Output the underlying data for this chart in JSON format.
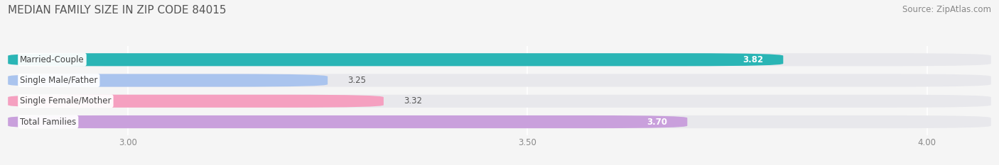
{
  "title": "MEDIAN FAMILY SIZE IN ZIP CODE 84015",
  "source": "Source: ZipAtlas.com",
  "categories": [
    "Married-Couple",
    "Single Male/Father",
    "Single Female/Mother",
    "Total Families"
  ],
  "values": [
    3.82,
    3.25,
    3.32,
    3.7
  ],
  "bar_colors": [
    "#2ab5b5",
    "#aac4ee",
    "#f5a0c0",
    "#c9a0dc"
  ],
  "xlim_min": 2.85,
  "xlim_max": 4.08,
  "xticks": [
    3.0,
    3.5,
    4.0
  ],
  "xtick_labels": [
    "3.00",
    "3.50",
    "4.00"
  ],
  "title_fontsize": 11,
  "source_fontsize": 8.5,
  "bar_label_fontsize": 8.5,
  "category_fontsize": 8.5,
  "bg_color": "#f5f5f5",
  "bar_bg_color": "#e8e8ec",
  "bar_height": 0.62,
  "bar_gap": 1.0,
  "label_inside_threshold": 3.6,
  "label_inside_color": "#ffffff",
  "label_outside_color": "#555555",
  "category_label_color": "#444444",
  "grid_color": "#cccccc",
  "tick_color": "#888888"
}
